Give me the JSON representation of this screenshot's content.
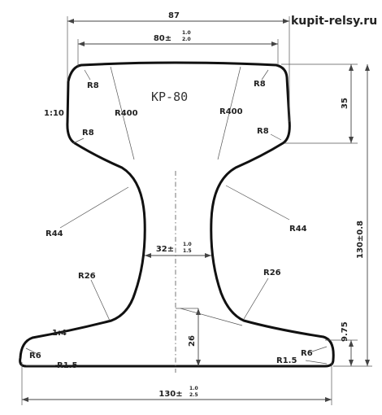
{
  "site": "kupit-relsy.ru",
  "profile_name": "КР-80",
  "dimensions": {
    "top_overall": "87",
    "head_width": "80±",
    "head_tol_upper": "1.0",
    "head_tol_lower": "2.0",
    "web_width": "32±",
    "web_tol_upper": "1.0",
    "web_tol_lower": "1.5",
    "base_width": "130±",
    "base_tol_upper": "1.0",
    "base_tol_lower": "2.5",
    "head_height": "35",
    "total_height": "130±0.8",
    "base_edge_height": "9.75",
    "web_to_base": "26"
  },
  "radii": {
    "r8_top_left": "R8",
    "r8_top_right": "R8",
    "r8_mid_left": "R8",
    "r8_mid_right": "R8",
    "r400_left": "R400",
    "r400_right": "R400",
    "r44_left": "R44",
    "r44_right": "R44",
    "r26_left": "R26",
    "r26_right": "R26",
    "r6_left": "R6",
    "r6_right": "R6",
    "r15_left": "R1.5",
    "r15_right": "R1.5"
  },
  "slopes": {
    "head_slope": "1:10",
    "base_slope": "1:4"
  }
}
